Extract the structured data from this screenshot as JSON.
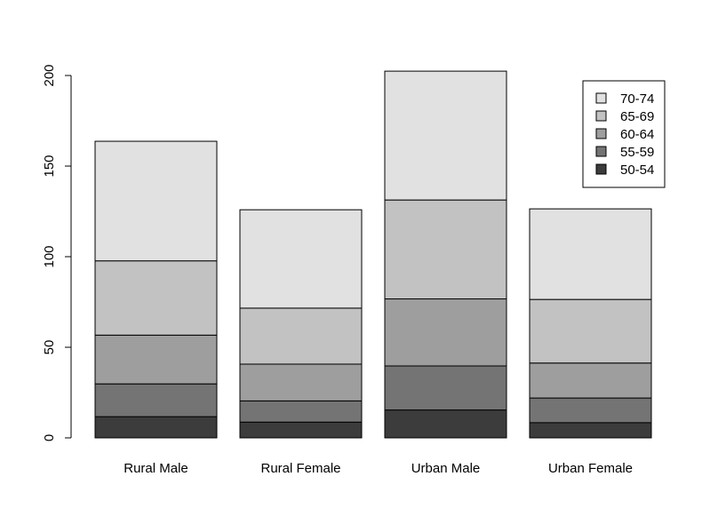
{
  "chart_data": {
    "type": "bar",
    "stacked": true,
    "categories": [
      "Rural Male",
      "Rural Female",
      "Urban Male",
      "Urban Female"
    ],
    "series": [
      {
        "name": "50-54",
        "color": "#3c3c3c",
        "values": [
          11.7,
          8.7,
          15.4,
          8.4
        ]
      },
      {
        "name": "55-59",
        "color": "#747474",
        "values": [
          18.1,
          11.7,
          24.3,
          13.6
        ]
      },
      {
        "name": "60-64",
        "color": "#9e9e9e",
        "values": [
          26.9,
          20.3,
          37.0,
          19.3
        ]
      },
      {
        "name": "65-69",
        "color": "#c2c2c2",
        "values": [
          41.0,
          30.9,
          54.6,
          35.1
        ]
      },
      {
        "name": "70-74",
        "color": "#e1e1e1",
        "values": [
          66.0,
          54.3,
          71.1,
          50.0
        ]
      }
    ],
    "yticks": [
      0,
      50,
      100,
      150,
      200
    ],
    "ylim": [
      0,
      210
    ],
    "xlabel": "",
    "ylabel": "",
    "title": "",
    "grid": false,
    "legend_position": "top-right",
    "legend_order": [
      "70-74",
      "65-69",
      "60-64",
      "55-59",
      "50-54"
    ]
  }
}
